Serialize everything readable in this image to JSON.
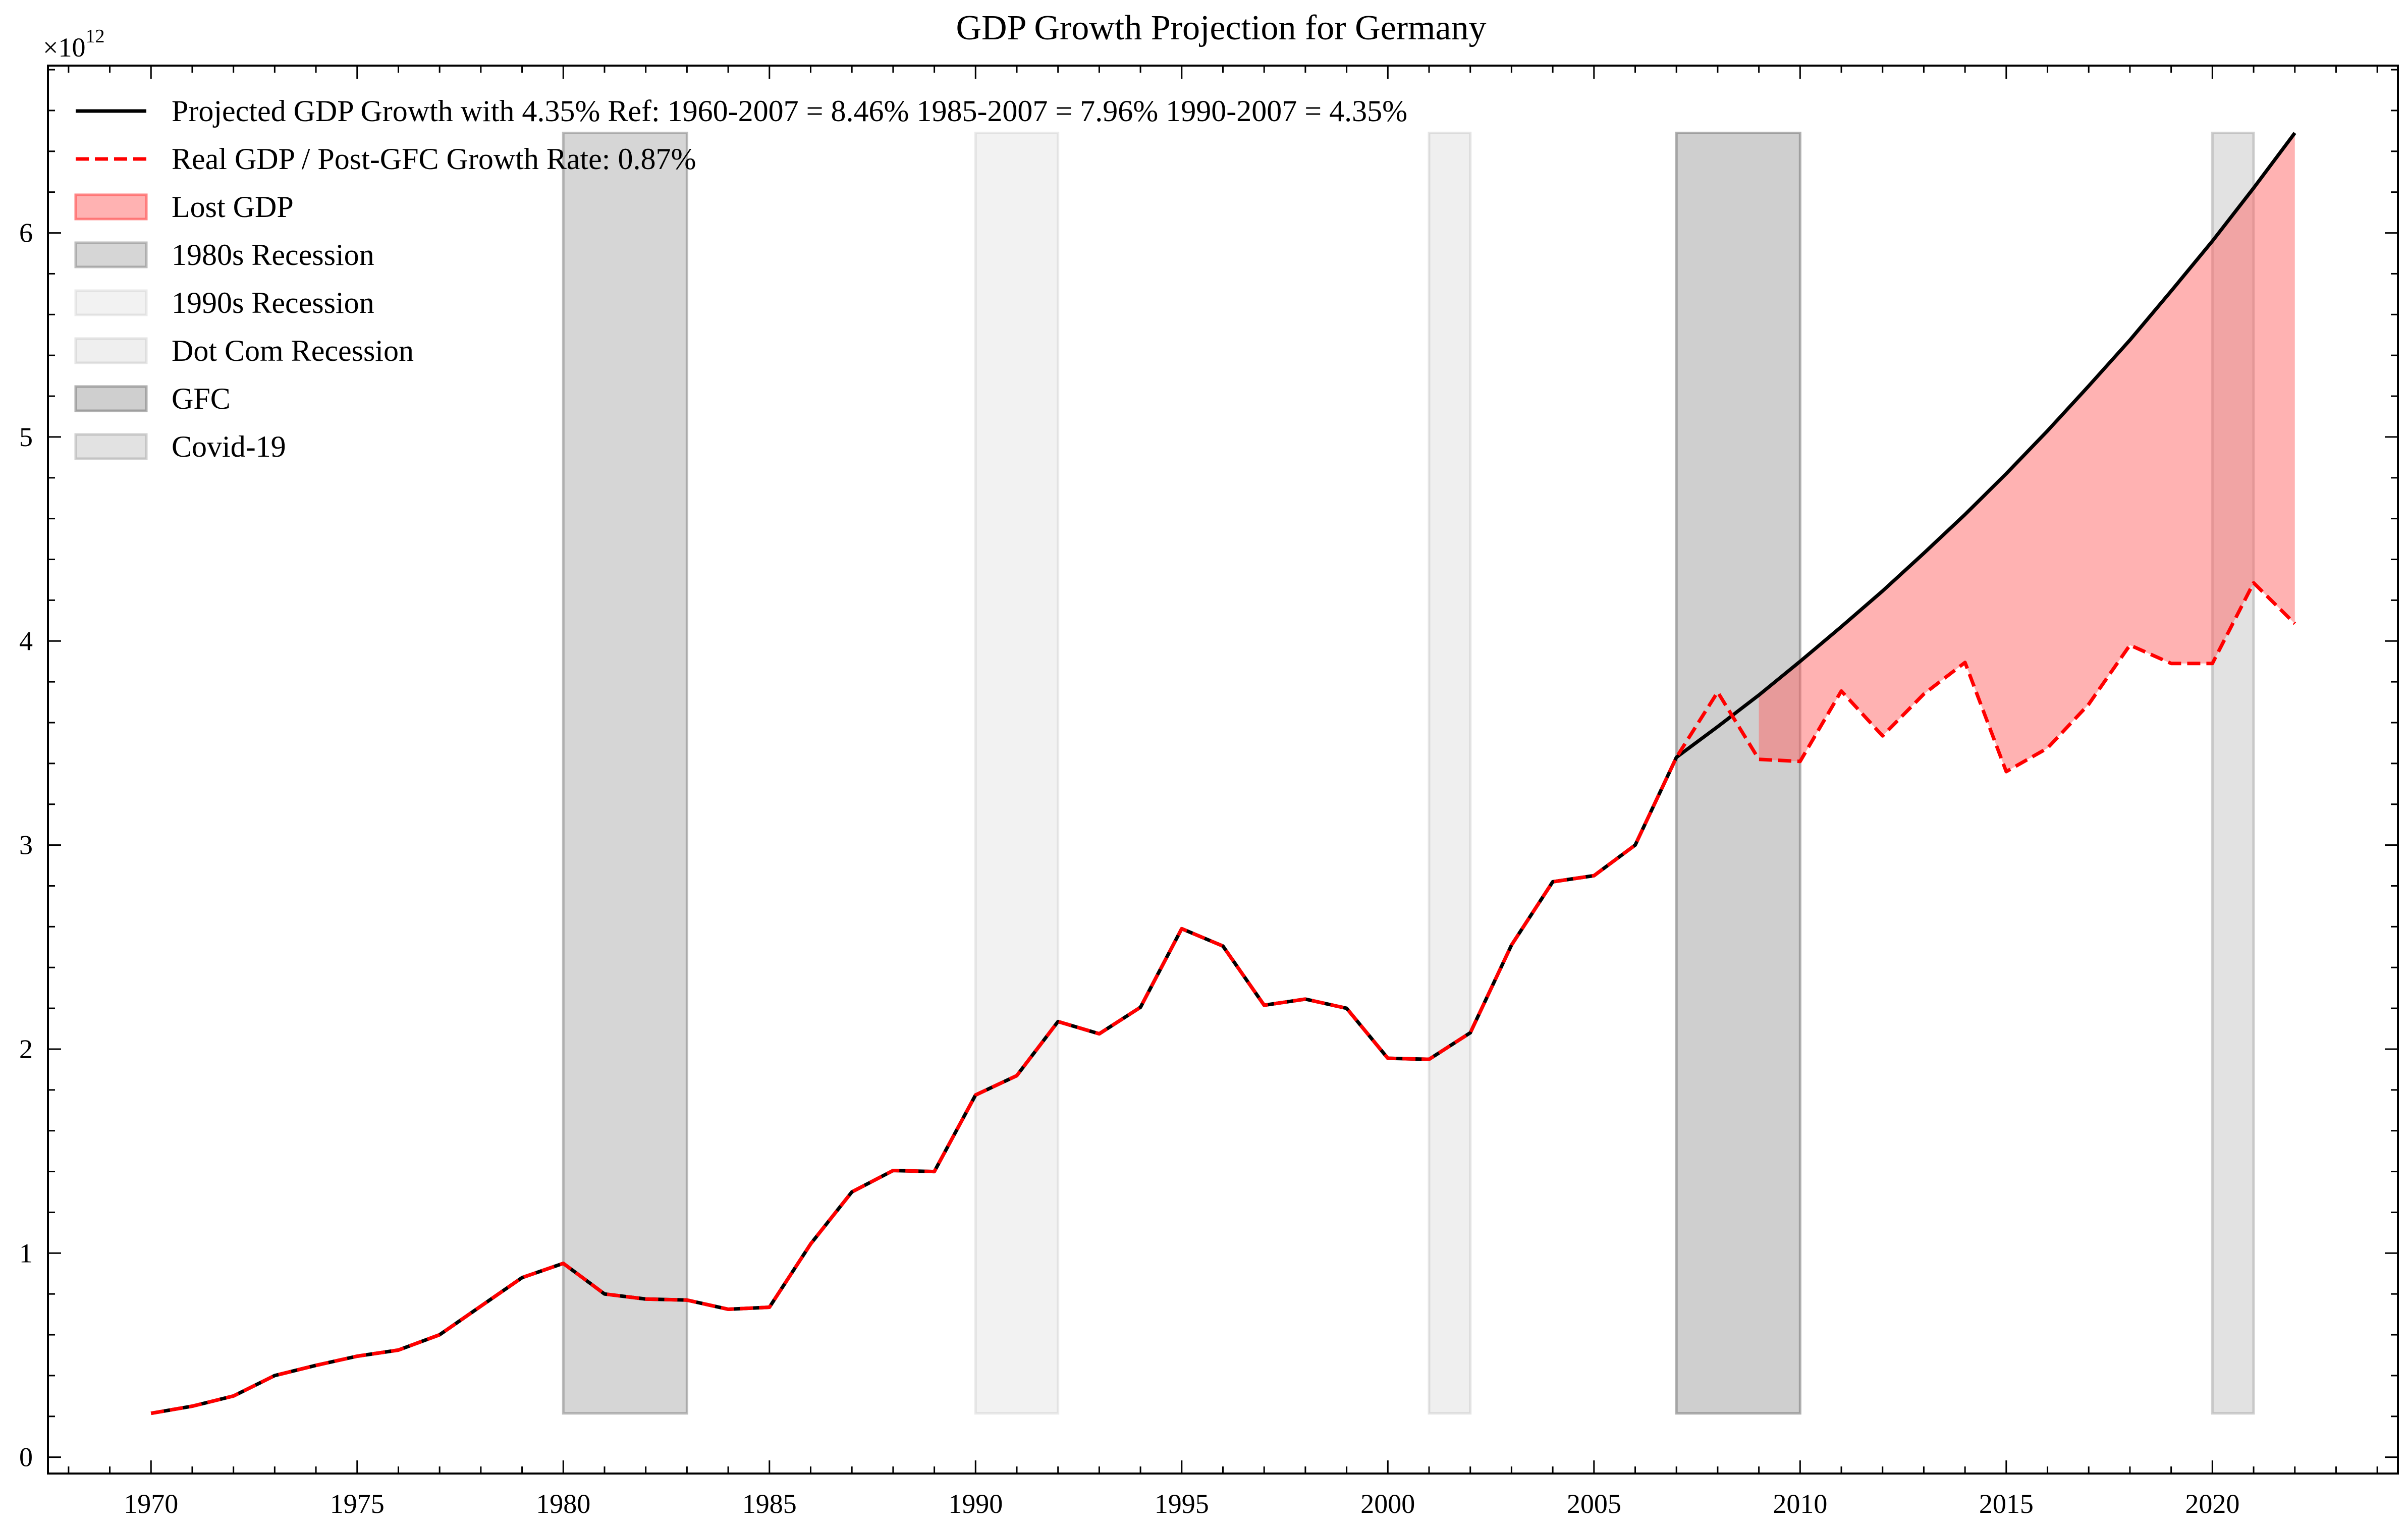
{
  "chart_data": {
    "type": "line",
    "title": "GDP Growth Projection for Germany",
    "xlabel": "",
    "ylabel": "",
    "y_offset_label": {
      "base": "×10",
      "exponent": "12"
    },
    "xlim": [
      1967.5,
      2024.5
    ],
    "ylim": [
      -0.08,
      6.82
    ],
    "y_scale_note": "values in units of 1e12",
    "x_ticks": [
      "1970",
      "1975",
      "1980",
      "1985",
      "1990",
      "1995",
      "2000",
      "2005",
      "2010",
      "2015",
      "2020"
    ],
    "y_ticks": [
      "0",
      "1",
      "2",
      "3",
      "4",
      "5",
      "6"
    ],
    "grid": false,
    "legend_position": "upper-left",
    "series": [
      {
        "name": "Projected GDP Growth with 4.35% Ref: 1960-2007 = 8.46% 1985-2007 = 7.96% 1990-2007 = 4.35%",
        "color": "#000000",
        "style": "solid",
        "x": [
          1970,
          1971,
          1972,
          1973,
          1974,
          1975,
          1976,
          1977,
          1978,
          1979,
          1980,
          1981,
          1982,
          1983,
          1984,
          1985,
          1986,
          1987,
          1988,
          1989,
          1990,
          1991,
          1992,
          1993,
          1994,
          1995,
          1996,
          1997,
          1998,
          1999,
          2000,
          2001,
          2002,
          2003,
          2004,
          2005,
          2006,
          2007,
          2008,
          2009,
          2010,
          2011,
          2012,
          2013,
          2014,
          2015,
          2016,
          2017,
          2018,
          2019,
          2020,
          2021,
          2022
        ],
        "y": [
          0.215,
          0.25,
          0.3,
          0.4,
          0.45,
          0.495,
          0.525,
          0.6,
          0.74,
          0.88,
          0.95,
          0.8,
          0.775,
          0.77,
          0.725,
          0.735,
          1.045,
          1.3,
          1.405,
          1.4,
          1.775,
          1.87,
          2.135,
          2.075,
          2.205,
          2.59,
          2.505,
          2.215,
          2.245,
          2.2,
          1.955,
          1.95,
          2.08,
          2.51,
          2.82,
          2.85,
          3.0,
          3.43,
          3.58,
          3.735,
          3.9,
          4.07,
          4.245,
          4.43,
          4.62,
          4.82,
          5.03,
          5.25,
          5.475,
          5.715,
          5.96,
          6.22,
          6.49
        ]
      },
      {
        "name": "Real GDP / Post-GFC Growth Rate: 0.87%",
        "color": "#ff0000",
        "style": "dashed",
        "x": [
          1970,
          1971,
          1972,
          1973,
          1974,
          1975,
          1976,
          1977,
          1978,
          1979,
          1980,
          1981,
          1982,
          1983,
          1984,
          1985,
          1986,
          1987,
          1988,
          1989,
          1990,
          1991,
          1992,
          1993,
          1994,
          1995,
          1996,
          1997,
          1998,
          1999,
          2000,
          2001,
          2002,
          2003,
          2004,
          2005,
          2006,
          2007,
          2008,
          2009,
          2010,
          2011,
          2012,
          2013,
          2014,
          2015,
          2016,
          2017,
          2018,
          2019,
          2020,
          2021,
          2022
        ],
        "y": [
          0.215,
          0.25,
          0.3,
          0.4,
          0.45,
          0.495,
          0.525,
          0.6,
          0.74,
          0.88,
          0.95,
          0.8,
          0.775,
          0.77,
          0.725,
          0.735,
          1.045,
          1.3,
          1.405,
          1.4,
          1.775,
          1.87,
          2.135,
          2.075,
          2.205,
          2.59,
          2.505,
          2.215,
          2.245,
          2.2,
          1.955,
          1.95,
          2.08,
          2.51,
          2.82,
          2.85,
          3.0,
          3.43,
          3.75,
          3.42,
          3.41,
          3.755,
          3.535,
          3.74,
          3.895,
          3.36,
          3.475,
          3.69,
          3.98,
          3.89,
          3.89,
          4.285,
          4.085
        ]
      }
    ],
    "fill_between": {
      "name": "Lost GDP",
      "color": "#ff6666",
      "opacity": 0.5,
      "x_range": [
        2009,
        2022
      ]
    },
    "shaded_regions": [
      {
        "name": "1980s Recession",
        "x0": 1980,
        "x1": 1983,
        "color": "#808080",
        "opacity": 0.32
      },
      {
        "name": "1990s Recession",
        "x0": 1990,
        "x1": 1992,
        "color": "#b0b0b0",
        "opacity": 0.16
      },
      {
        "name": "Dot Com Recession",
        "x0": 2001,
        "x1": 2002,
        "color": "#b0b0b0",
        "opacity": 0.2
      },
      {
        "name": "GFC",
        "x0": 2007,
        "x1": 2010,
        "color": "#808080",
        "opacity": 0.38
      },
      {
        "name": "Covid-19",
        "x0": 2020,
        "x1": 2021,
        "color": "#a0a0a0",
        "opacity": 0.3
      }
    ],
    "shaded_y_range": [
      0.215,
      6.49
    ]
  }
}
